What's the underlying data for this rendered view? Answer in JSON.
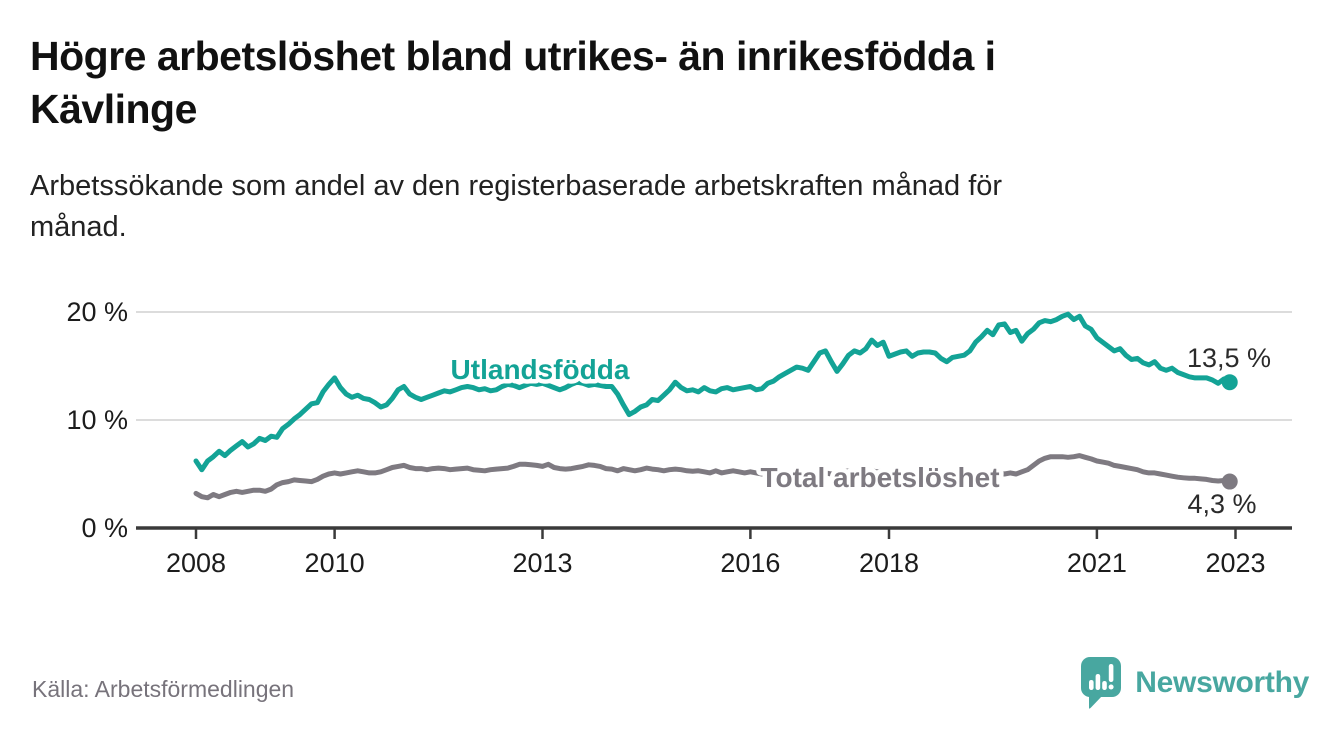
{
  "header": {
    "title_lines": [
      "Högre arbetslöshet bland utrikes- än inrikesfödda i",
      "Kävlinge"
    ],
    "subtitle_lines": [
      "Arbetssökande som andel av den registerbaserade arbetskraften månad för",
      "månad."
    ]
  },
  "footer": {
    "source": "Källa: Arbetsförmedlingen",
    "logo_text": "Newsworthy",
    "logo_color": "#48A7A0"
  },
  "chart_data": {
    "type": "line",
    "x_start": "2008-01",
    "x_end": "2022-12",
    "x_interval": "monthly",
    "x_ticks": [
      "2008",
      "2010",
      "2013",
      "2016",
      "2018",
      "2021",
      "2023"
    ],
    "y_ticks": [
      {
        "value": 0,
        "label": "0 %"
      },
      {
        "value": 10,
        "label": "10 %"
      },
      {
        "value": 20,
        "label": "20 %"
      }
    ],
    "ylim": [
      0,
      22.5
    ],
    "grid": "horizontal",
    "axis_color": "#3a3a3a",
    "grid_color": "#dcdcdc",
    "value_label_color": "#2b2b2b",
    "series": [
      {
        "name": "Utlandsfödda",
        "color": "#13A396",
        "end_label": "13,5 %",
        "end_value": 13.5,
        "values": [
          6.2,
          5.4,
          6.2,
          6.6,
          7.1,
          6.7,
          7.2,
          7.6,
          8.0,
          7.5,
          7.8,
          8.3,
          8.1,
          8.5,
          8.4,
          9.2,
          9.6,
          10.1,
          10.5,
          11.0,
          11.5,
          11.6,
          12.6,
          13.3,
          13.9,
          13.0,
          12.4,
          12.1,
          12.3,
          12.0,
          11.9,
          11.6,
          11.2,
          11.4,
          12.0,
          12.8,
          13.1,
          12.4,
          12.1,
          11.9,
          12.1,
          12.3,
          12.5,
          12.7,
          12.6,
          12.8,
          13.0,
          13.1,
          13.0,
          12.8,
          12.9,
          12.7,
          12.8,
          13.1,
          13.3,
          13.2,
          13.0,
          13.2,
          13.4,
          13.3,
          13.4,
          13.2,
          13.0,
          12.8,
          13.0,
          13.3,
          13.5,
          13.4,
          13.2,
          13.3,
          13.2,
          13.1,
          13.1,
          12.4,
          11.4,
          10.5,
          10.8,
          11.2,
          11.4,
          11.9,
          11.8,
          12.3,
          12.8,
          13.5,
          13.0,
          12.7,
          12.8,
          12.6,
          13.0,
          12.7,
          12.6,
          12.9,
          13.0,
          12.8,
          12.9,
          13.0,
          13.1,
          12.8,
          12.9,
          13.4,
          13.6,
          14.0,
          14.3,
          14.6,
          14.9,
          14.8,
          14.6,
          15.4,
          16.2,
          16.4,
          15.4,
          14.5,
          15.2,
          16.0,
          16.4,
          16.2,
          16.6,
          17.4,
          16.9,
          17.2,
          15.9,
          16.1,
          16.3,
          16.4,
          15.9,
          16.2,
          16.3,
          16.3,
          16.2,
          15.7,
          15.4,
          15.8,
          15.9,
          16.0,
          16.4,
          17.2,
          17.7,
          18.3,
          17.9,
          18.8,
          18.9,
          18.1,
          18.3,
          17.3,
          18.0,
          18.4,
          19.0,
          19.2,
          19.1,
          19.3,
          19.6,
          19.8,
          19.3,
          19.6,
          18.7,
          18.4,
          17.6,
          17.2,
          16.8,
          16.4,
          16.6,
          16.0,
          15.6,
          15.7,
          15.3,
          15.1,
          15.4,
          14.8,
          14.6,
          14.8,
          14.4,
          14.2,
          14.0,
          13.9,
          13.9,
          13.9,
          13.7,
          13.4,
          13.8,
          13.5
        ]
      },
      {
        "name": "Total arbetslöshet",
        "color": "#7E7A81",
        "end_label": "4,3 %",
        "end_value": 4.3,
        "values": [
          3.2,
          2.9,
          2.8,
          3.1,
          2.9,
          3.1,
          3.3,
          3.4,
          3.3,
          3.4,
          3.5,
          3.5,
          3.4,
          3.6,
          4.0,
          4.2,
          4.3,
          4.45,
          4.4,
          4.35,
          4.3,
          4.5,
          4.8,
          5.0,
          5.1,
          5.0,
          5.1,
          5.2,
          5.3,
          5.2,
          5.1,
          5.1,
          5.2,
          5.4,
          5.6,
          5.7,
          5.8,
          5.6,
          5.5,
          5.5,
          5.4,
          5.5,
          5.55,
          5.5,
          5.4,
          5.45,
          5.5,
          5.55,
          5.4,
          5.35,
          5.3,
          5.4,
          5.45,
          5.5,
          5.55,
          5.7,
          5.9,
          5.9,
          5.85,
          5.8,
          5.7,
          5.9,
          5.6,
          5.5,
          5.45,
          5.5,
          5.6,
          5.7,
          5.85,
          5.8,
          5.7,
          5.5,
          5.45,
          5.3,
          5.5,
          5.4,
          5.3,
          5.4,
          5.55,
          5.45,
          5.4,
          5.3,
          5.4,
          5.45,
          5.4,
          5.3,
          5.25,
          5.3,
          5.2,
          5.1,
          5.3,
          5.1,
          5.2,
          5.3,
          5.2,
          5.1,
          5.2,
          5.1,
          5.0,
          5.1,
          5.0,
          4.9,
          5.0,
          5.1,
          5.2,
          5.1,
          5.0,
          5.1,
          5.2,
          5.1,
          5.0,
          5.1,
          5.2,
          5.3,
          5.2,
          5.3,
          5.4,
          5.3,
          5.2,
          5.3,
          5.2,
          5.1,
          5.0,
          4.9,
          5.0,
          4.9,
          5.0,
          4.9,
          4.8,
          4.9,
          5.0,
          4.9,
          5.0,
          4.9,
          5.0,
          5.1,
          5.0,
          5.1,
          5.2,
          5.1,
          5.0,
          5.1,
          5.0,
          5.2,
          5.4,
          5.8,
          6.2,
          6.45,
          6.6,
          6.6,
          6.6,
          6.55,
          6.6,
          6.7,
          6.55,
          6.4,
          6.2,
          6.1,
          6.0,
          5.8,
          5.7,
          5.6,
          5.5,
          5.4,
          5.2,
          5.1,
          5.1,
          5.0,
          4.9,
          4.8,
          4.7,
          4.65,
          4.6,
          4.6,
          4.55,
          4.5,
          4.4,
          4.35,
          4.4,
          4.3
        ]
      }
    ]
  }
}
